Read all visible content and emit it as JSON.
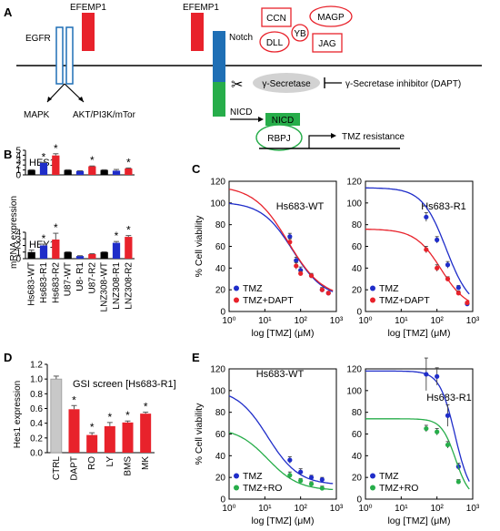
{
  "panels": {
    "A": "A",
    "B": "B",
    "C": "C",
    "D": "D",
    "E": "E"
  },
  "pathway": {
    "egfr": "EGFR",
    "efemp1_left": "EFEMP1",
    "efemp1_right": "EFEMP1",
    "notch": "Notch",
    "ligands": [
      "CCN",
      "MAGP",
      "YB",
      "DLL",
      "JAG"
    ],
    "mapk": "MAPK",
    "akt": "AKT/PI3K/mTor",
    "gamma_secretase": "γ-Secretase",
    "inhibitor": "γ-Secretase inhibitor (DAPT)",
    "nicd_arrow": "NICD",
    "nicd_box": "NICD",
    "rbpj": "RBPJ",
    "outcome": "TMZ resistance",
    "colors": {
      "efemp1": "#e8222b",
      "notch_top": "#1f6fb5",
      "notch_bottom": "#27ad4a",
      "ligand_border": "#e8222b",
      "nicd": "#27ad4a"
    }
  },
  "chart_data": [
    {
      "id": "B-HES1",
      "type": "bar",
      "title": "HES1",
      "ylabel": "mRNA expression",
      "ylim": [
        0,
        5
      ],
      "ticks": [
        0,
        1,
        2,
        3,
        4,
        5
      ],
      "categories": [
        "Hs683-WT",
        "Hs683-R1",
        "Hs683-R2",
        "U87-WT",
        "U8- R1",
        "U87-R2",
        "LNZ308-WT",
        "LNZ308-R1",
        "LNZ308-R2"
      ],
      "values": [
        1.0,
        2.45,
        3.95,
        1.0,
        0.8,
        1.75,
        1.0,
        0.85,
        1.3
      ],
      "errors": [
        0.05,
        0.08,
        0.35,
        0.05,
        0.05,
        0.06,
        0.05,
        0.25,
        0.1
      ],
      "stars": [
        false,
        true,
        true,
        false,
        false,
        true,
        false,
        false,
        true
      ],
      "colors": [
        "#000000",
        "#1f2dc9",
        "#e8222b",
        "#000000",
        "#1f2dc9",
        "#e8222b",
        "#000000",
        "#1f2dc9",
        "#e8222b"
      ]
    },
    {
      "id": "B-HEY1",
      "type": "bar",
      "title": "HEY1",
      "ylabel": "mRNA expression",
      "ylim": [
        0,
        4
      ],
      "ticks": [
        0,
        1,
        2,
        3,
        4
      ],
      "categories": [
        "Hs683-WT",
        "Hs683-R1",
        "Hs683-R2",
        "U87-WT",
        "U8- R1",
        "U87-R2",
        "LNZ308-WT",
        "LNZ308-R1",
        "LNZ308-R2"
      ],
      "values": [
        1.0,
        2.0,
        2.9,
        1.0,
        0.4,
        0.7,
        1.0,
        2.4,
        3.3
      ],
      "errors": [
        0.3,
        0.2,
        0.95,
        0.05,
        0.05,
        0.05,
        0.05,
        0.2,
        0.2
      ],
      "stars": [
        false,
        true,
        true,
        false,
        false,
        false,
        false,
        true,
        true
      ],
      "colors": [
        "#000000",
        "#1f2dc9",
        "#e8222b",
        "#000000",
        "#1f2dc9",
        "#e8222b",
        "#000000",
        "#1f2dc9",
        "#e8222b"
      ]
    },
    {
      "id": "C-WT",
      "type": "scatter",
      "title": "Hs683-WT",
      "ylabel": "% Cell viability",
      "xlabel": "log [TMZ] (μM)",
      "xscale": "log",
      "xlim": [
        1,
        1000
      ],
      "ylim": [
        0,
        120
      ],
      "yticks": [
        0,
        20,
        40,
        60,
        80,
        100,
        120
      ],
      "xticks": [
        1,
        10,
        100,
        1000
      ],
      "xtick_labels": [
        "10⁰",
        "10¹",
        "10²",
        "10³"
      ],
      "legend": [
        "TMZ",
        "TMZ+DAPT"
      ],
      "legend_position": "bottom-left",
      "series": [
        {
          "name": "TMZ",
          "color": "#1f2dc9",
          "x": [
            50,
            75,
            100,
            200,
            400,
            600
          ],
          "y": [
            69,
            47,
            38,
            33,
            20,
            17
          ],
          "err": [
            3,
            3,
            3,
            2,
            2,
            1
          ],
          "fit": {
            "top": 101,
            "bottom": 12,
            "ec50": 60,
            "hill": 1.0
          }
        },
        {
          "name": "TMZ+DAPT",
          "color": "#e8222b",
          "x": [
            50,
            75,
            100,
            200,
            400,
            600
          ],
          "y": [
            64,
            42,
            35,
            33,
            20,
            17
          ],
          "err": [
            3,
            3,
            2,
            2,
            2,
            1
          ],
          "fit": {
            "top": 116,
            "bottom": 12,
            "ec50": 45,
            "hill": 0.9
          }
        }
      ]
    },
    {
      "id": "C-R1",
      "type": "scatter",
      "title": "Hs683-R1",
      "ylabel": "",
      "xlabel": "log [TMZ] (μM)",
      "xscale": "log",
      "xlim": [
        1,
        1000
      ],
      "ylim": [
        0,
        120
      ],
      "yticks": [
        0,
        20,
        40,
        60,
        80,
        100,
        120
      ],
      "xticks": [
        1,
        10,
        100,
        1000
      ],
      "xtick_labels": [
        "10⁰",
        "10¹",
        "10²",
        "10³"
      ],
      "legend": [
        "TMZ",
        "TMZ+DAPT"
      ],
      "legend_position": "bottom-left",
      "series": [
        {
          "name": "TMZ",
          "color": "#1f2dc9",
          "x": [
            50,
            100,
            200,
            400,
            700
          ],
          "y": [
            87,
            66,
            43,
            22,
            7
          ],
          "err": [
            4,
            3,
            3,
            2,
            2
          ],
          "fit": {
            "top": 114,
            "bottom": 2,
            "ec50": 180,
            "hill": 1.3
          }
        },
        {
          "name": "TMZ+DAPT",
          "color": "#e8222b",
          "x": [
            50,
            100,
            200,
            400,
            700
          ],
          "y": [
            57,
            40,
            30,
            17,
            8
          ],
          "err": [
            3,
            3,
            2,
            2,
            1
          ],
          "fit": {
            "top": 76,
            "bottom": 2,
            "ec50": 130,
            "hill": 1.2
          }
        }
      ]
    },
    {
      "id": "D",
      "type": "bar",
      "title": "GSI screen [Hs683-R1]",
      "ylabel": "Hes1 expression",
      "ylim": [
        0,
        1.2
      ],
      "ticks": [
        0,
        0.2,
        0.4,
        0.6,
        0.8,
        1.0,
        1.2
      ],
      "tick_labels": [
        "0.0",
        "0.2",
        "0.4",
        "0.6",
        "0.8",
        "1.0",
        "1.2"
      ],
      "categories": [
        "CTRL",
        "DAPT",
        "RO",
        "LY",
        "BMS",
        "MK"
      ],
      "values": [
        1.0,
        0.59,
        0.24,
        0.36,
        0.41,
        0.53
      ],
      "errors": [
        0.04,
        0.05,
        0.03,
        0.05,
        0.02,
        0.02
      ],
      "stars": [
        false,
        true,
        true,
        true,
        true,
        true
      ],
      "colors": [
        "#c8c8c8",
        "#e8222b",
        "#e8222b",
        "#e8222b",
        "#e8222b",
        "#e8222b"
      ]
    },
    {
      "id": "E-WT",
      "type": "scatter",
      "title": "Hs683-WT",
      "ylabel": "% Cell viability",
      "xlabel": "log [TMZ] (μM)",
      "xscale": "log",
      "xlim": [
        1,
        1000
      ],
      "ylim": [
        0,
        120
      ],
      "yticks": [
        0,
        20,
        40,
        60,
        80,
        100,
        120
      ],
      "xticks": [
        1,
        10,
        100,
        1000
      ],
      "xtick_labels": [
        "10⁰",
        "10¹",
        "10²",
        "10³"
      ],
      "legend": [
        "TMZ",
        "TMZ+RO"
      ],
      "legend_position": "bottom-left",
      "series": [
        {
          "name": "TMZ",
          "color": "#1f2dc9",
          "x": [
            50,
            100,
            200,
            400
          ],
          "y": [
            36,
            25,
            20,
            18
          ],
          "err": [
            3,
            3,
            2,
            2
          ],
          "fit": {
            "top": 102,
            "bottom": 13,
            "ec50": 12,
            "hill": 1.0
          }
        },
        {
          "name": "TMZ+RO",
          "color": "#27ad4a",
          "x": [
            50,
            100,
            200,
            400
          ],
          "y": [
            22,
            17,
            14,
            10
          ],
          "err": [
            3,
            2,
            2,
            2
          ],
          "fit": {
            "top": 66,
            "bottom": 8,
            "ec50": 12,
            "hill": 1.0
          }
        }
      ]
    },
    {
      "id": "E-R1",
      "type": "scatter",
      "title": "Hs683-R1",
      "ylabel": "",
      "xlabel": "log [TMZ] (μM)",
      "xscale": "log",
      "xlim": [
        1,
        1000
      ],
      "ylim": [
        0,
        120
      ],
      "yticks": [
        0,
        20,
        40,
        60,
        80,
        100,
        120
      ],
      "xticks": [
        1,
        10,
        100,
        1000
      ],
      "xtick_labels": [
        "10⁰",
        "10¹",
        "10²",
        "10³"
      ],
      "legend": [
        "TMZ",
        "TMZ+RO"
      ],
      "legend_position": "bottom-left",
      "series": [
        {
          "name": "TMZ",
          "color": "#1f2dc9",
          "x": [
            50,
            100,
            200,
            400
          ],
          "y": [
            115,
            113,
            77,
            30
          ],
          "err": [
            15,
            8,
            10,
            3
          ],
          "fit": {
            "top": 118,
            "bottom": 0,
            "ec50": 320,
            "hill": 2.0
          }
        },
        {
          "name": "TMZ+RO",
          "color": "#27ad4a",
          "x": [
            50,
            100,
            200,
            400
          ],
          "y": [
            65,
            62,
            50,
            16
          ],
          "err": [
            3,
            3,
            3,
            2
          ],
          "fit": {
            "top": 74,
            "bottom": 0,
            "ec50": 330,
            "hill": 2.2
          }
        }
      ]
    }
  ]
}
